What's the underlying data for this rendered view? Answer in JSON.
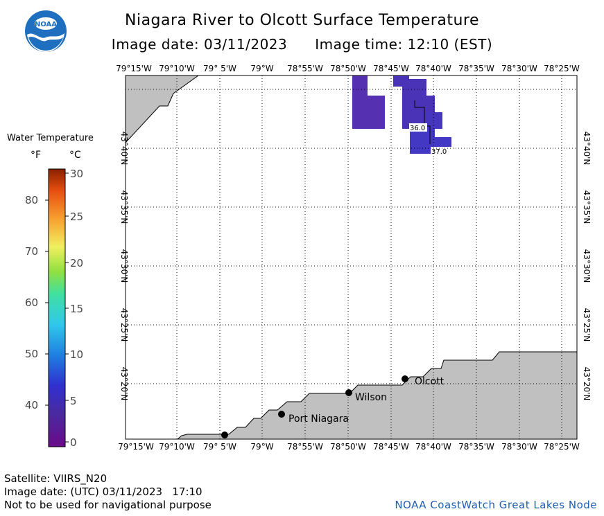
{
  "header": {
    "title": "Niagara River to Olcott Surface Temperature",
    "image_date": "Image date: 03/11/2023",
    "image_time": "Image time: 12:10 (EST)"
  },
  "logo": {
    "text": "NOAA"
  },
  "legend": {
    "title": "Water Temperature",
    "unit_f": "°F",
    "unit_c": "°C",
    "f_ticks": [
      "80",
      "70",
      "60",
      "50",
      "40"
    ],
    "c_ticks": [
      "30",
      "25",
      "20",
      "15",
      "10",
      "5",
      "0"
    ]
  },
  "map": {
    "top_lon_labels": [
      "79°15'W",
      "79°10'W",
      "79° 5'W",
      "79°W",
      "78°55'W",
      "78°50'W",
      "78°45'W",
      "78°40'W",
      "78°35'W",
      "78°30'W",
      "78°25'W"
    ],
    "bottom_lon_labels": [
      "79°15'W",
      "79°10'W",
      "79° 5'W",
      "79°W",
      "78°55'W",
      "78°50'W",
      "78°45'W",
      "78°40'W",
      "78°35'W",
      "78°30'W",
      "78°25'W"
    ],
    "lat_labels": [
      "43°40'N",
      "43°35'N",
      "43°30'N",
      "43°25'N",
      "43°20'N"
    ],
    "places": [
      "Olcott",
      "Wilson",
      "Port Niagara"
    ],
    "contour_labels": [
      "36.0",
      "37.0"
    ],
    "colors": {
      "land": "#c0c0c0",
      "water_cell_a": "#5530b0",
      "water_cell_b": "#4535bf"
    }
  },
  "footer": {
    "satellite": "Satellite: VIIRS_N20",
    "utc_date": "Image date: (UTC) 03/11/2023   17:10",
    "disclaimer": "Not to be used for navigational purpose",
    "credit": "NOAA CoastWatch Great Lakes Node"
  }
}
